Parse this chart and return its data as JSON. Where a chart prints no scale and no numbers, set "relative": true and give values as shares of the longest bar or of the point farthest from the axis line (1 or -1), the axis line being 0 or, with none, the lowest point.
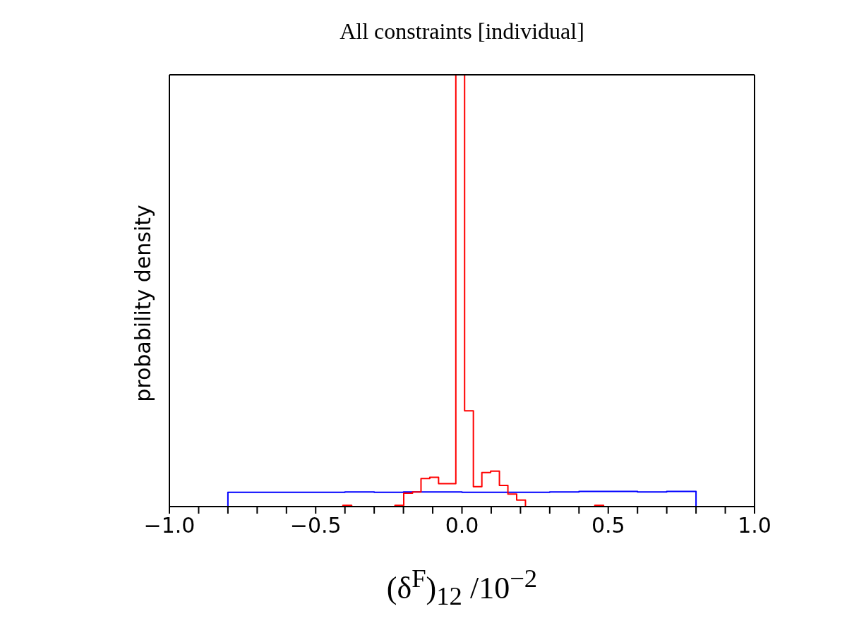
{
  "chart_data": {
    "type": "step",
    "title": "All constraints [individual]",
    "xlabel": "(δ$^{F}$)$_{12}$ /10$^{−2}$",
    "ylabel": "probability density",
    "relative": true,
    "xlim": [
      -1,
      1
    ],
    "xticks": [
      {
        "value": -1,
        "label": "−1.0"
      },
      {
        "value": -0.9,
        "label": null
      },
      {
        "value": -0.8,
        "label": null
      },
      {
        "value": -0.7,
        "label": null
      },
      {
        "value": -0.6,
        "label": null
      },
      {
        "value": -0.5,
        "label": "−0.5"
      },
      {
        "value": -0.4,
        "label": null
      },
      {
        "value": -0.3,
        "label": null
      },
      {
        "value": -0.2,
        "label": null
      },
      {
        "value": -0.1,
        "label": null
      },
      {
        "value": 0,
        "label": "0.0"
      },
      {
        "value": 0.1,
        "label": null
      },
      {
        "value": 0.2,
        "label": null
      },
      {
        "value": 0.3,
        "label": null
      },
      {
        "value": 0.4,
        "label": null
      },
      {
        "value": 0.5,
        "label": "0.5"
      },
      {
        "value": 0.6,
        "label": null
      },
      {
        "value": 0.7,
        "label": null
      },
      {
        "value": 0.8,
        "label": null
      },
      {
        "value": 0.9,
        "label": null
      },
      {
        "value": 1,
        "label": "1.0"
      }
    ],
    "series": [
      {
        "color": "#0000ff",
        "x": [
          -0.8,
          -0.8,
          -0.7,
          -0.6,
          -0.5,
          -0.4,
          -0.3,
          -0.2,
          -0.1,
          0,
          0.1,
          0.2,
          0.3,
          0.4,
          0.5,
          0.6,
          0.7,
          0.8,
          0.8
        ],
        "values": [
          0,
          0.033,
          0.033,
          0.033,
          0.033,
          0.034,
          0.033,
          0.034,
          0.034,
          0.033,
          0.033,
          0.033,
          0.034,
          0.035,
          0.035,
          0.034,
          0.035,
          0.035,
          0
        ]
      },
      {
        "color": "#ff0000",
        "x": [
          -0.407,
          -0.407,
          -0.377,
          -0.348,
          -0.318,
          -0.288,
          -0.259,
          -0.229,
          -0.199,
          -0.169,
          -0.14,
          -0.11,
          -0.08,
          -0.051,
          -0.021,
          0.009,
          0.039,
          0.068,
          0.098,
          0.128,
          0.157,
          0.187,
          0.217,
          0.246,
          0.276,
          0.306,
          0.336,
          0.365,
          0.395,
          0.425,
          0.454,
          0.484,
          0.484
        ],
        "values": [
          0,
          0.003,
          0,
          0,
          0,
          0,
          0,
          0.003,
          0.031,
          0.034,
          0.065,
          0.068,
          0.053,
          0.053,
          1,
          0.222,
          0.046,
          0.079,
          0.082,
          0.049,
          0.029,
          0.015,
          0,
          0,
          0,
          0,
          0,
          0,
          0,
          0,
          0.003,
          0.003,
          0
        ]
      }
    ]
  }
}
